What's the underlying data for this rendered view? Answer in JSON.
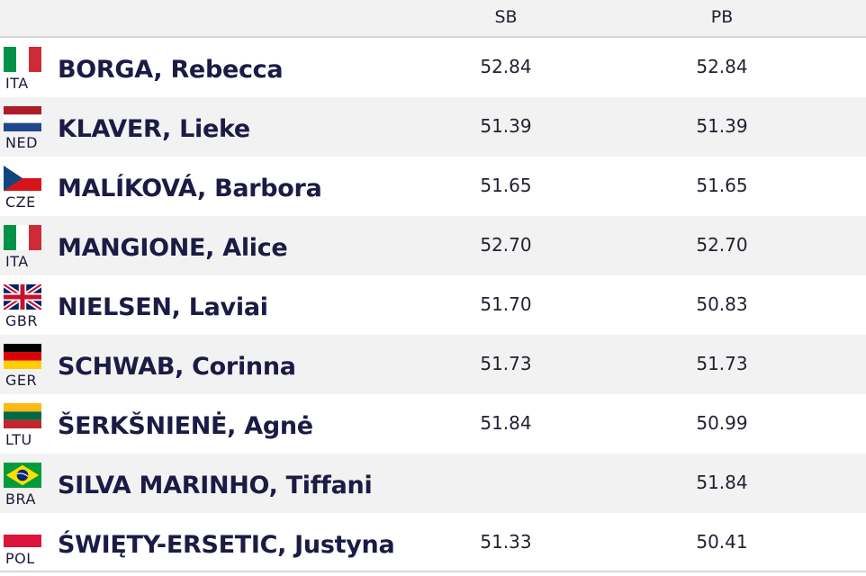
{
  "header": {
    "sb_label": "SB",
    "pb_label": "PB"
  },
  "rows": [
    {
      "name": "BORGA, Rebecca",
      "country": "ITA",
      "flag_icon": "italy-flag-icon",
      "sb": "52.84",
      "pb": "52.84"
    },
    {
      "name": "KLAVER, Lieke",
      "country": "NED",
      "flag_icon": "netherlands-flag-icon",
      "sb": "51.39",
      "pb": "51.39"
    },
    {
      "name": "MALÍKOVÁ, Barbora",
      "country": "CZE",
      "flag_icon": "czechia-flag-icon",
      "sb": "51.65",
      "pb": "51.65"
    },
    {
      "name": "MANGIONE, Alice",
      "country": "ITA",
      "flag_icon": "italy-flag-icon",
      "sb": "52.70",
      "pb": "52.70"
    },
    {
      "name": "NIELSEN, Laviai",
      "country": "GBR",
      "flag_icon": "uk-flag-icon",
      "sb": "51.70",
      "pb": "50.83"
    },
    {
      "name": "SCHWAB, Corinna",
      "country": "GER",
      "flag_icon": "germany-flag-icon",
      "sb": "51.73",
      "pb": "51.73"
    },
    {
      "name": "ŠERKŠNIENĖ, Agnė",
      "country": "LTU",
      "flag_icon": "lithuania-flag-icon",
      "sb": "51.84",
      "pb": "50.99"
    },
    {
      "name": "SILVA MARINHO, Tiffani",
      "country": "BRA",
      "flag_icon": "brazil-flag-icon",
      "sb": "",
      "pb": "51.84"
    },
    {
      "name": "ŚWIĘTY-ERSETIC, Justyna",
      "country": "POL",
      "flag_icon": "poland-flag-icon",
      "sb": "51.33",
      "pb": "50.41"
    }
  ]
}
